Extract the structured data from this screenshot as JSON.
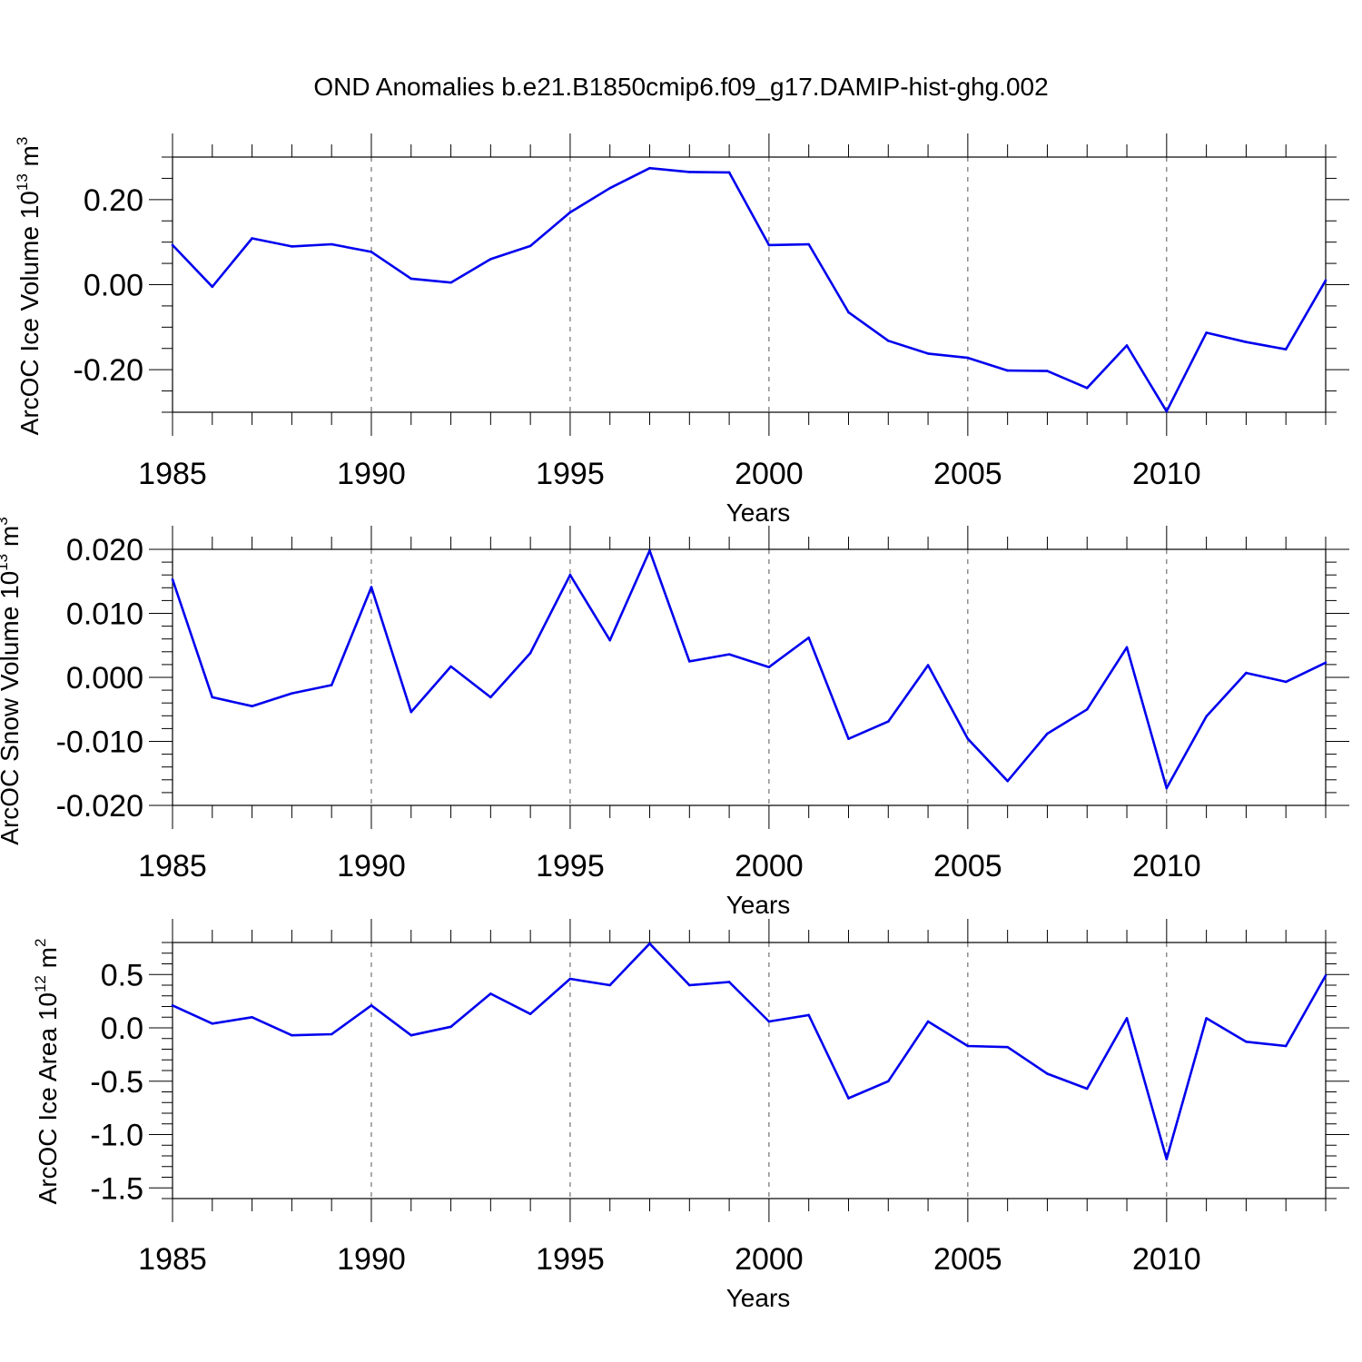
{
  "figure": {
    "title": "OND Anomalies b.e21.B1850cmip6.f09_g17.DAMIP-hist-ghg.002"
  },
  "colors": {
    "line": "#0000ee",
    "axis": "#000000",
    "grid": "#555555"
  },
  "chart_data": [
    {
      "type": "line",
      "name": "ice-volume",
      "xlabel": "Years",
      "ylabel_main": "ArcOC Ice Volume 10",
      "ylabel_exp": "13",
      "ylabel_unit": "m",
      "ylabel_unit_exp": "3",
      "xlim": [
        1985,
        2014
      ],
      "ylim": [
        -0.3,
        0.3
      ],
      "x_ticks": [
        1985,
        1990,
        1995,
        2000,
        2005,
        2010
      ],
      "x_tick_labels": [
        "1985",
        "1990",
        "1995",
        "2000",
        "2005",
        "2010"
      ],
      "y_ticks": [
        -0.2,
        0.0,
        0.2
      ],
      "y_tick_labels": [
        "-0.20",
        "0.00",
        "0.20"
      ],
      "y_minor_step": 0.05,
      "grid": "vertical dashed at major x ticks",
      "x": [
        1985,
        1986,
        1987,
        1988,
        1989,
        1990,
        1991,
        1992,
        1993,
        1994,
        1995,
        1996,
        1997,
        1998,
        1999,
        2000,
        2001,
        2002,
        2003,
        2004,
        2005,
        2006,
        2007,
        2008,
        2009,
        2010,
        2011,
        2012,
        2013,
        2014
      ],
      "values": [
        0.093,
        -0.005,
        0.109,
        0.09,
        0.095,
        0.077,
        0.014,
        0.005,
        0.06,
        0.091,
        0.17,
        0.227,
        0.274,
        0.265,
        0.264,
        0.093,
        0.095,
        -0.065,
        -0.132,
        -0.162,
        -0.172,
        -0.202,
        -0.203,
        -0.243,
        -0.143,
        -0.298,
        -0.113,
        -0.135,
        -0.152,
        0.01
      ]
    },
    {
      "type": "line",
      "name": "snow-volume",
      "xlabel": "Years",
      "ylabel_main": "ArcOC Snow Volume 10",
      "ylabel_exp": "13",
      "ylabel_unit": "m",
      "ylabel_unit_exp": "3",
      "xlim": [
        1985,
        2014
      ],
      "ylim": [
        -0.02,
        0.02
      ],
      "x_ticks": [
        1985,
        1990,
        1995,
        2000,
        2005,
        2010
      ],
      "x_tick_labels": [
        "1985",
        "1990",
        "1995",
        "2000",
        "2005",
        "2010"
      ],
      "y_ticks": [
        -0.02,
        -0.01,
        0.0,
        0.01,
        0.02
      ],
      "y_tick_labels": [
        "-0.020",
        "-0.010",
        "0.000",
        "0.010",
        "0.020"
      ],
      "y_minor_step": 0.002,
      "grid": "vertical dashed at major x ticks",
      "x": [
        1985,
        1986,
        1987,
        1988,
        1989,
        1990,
        1991,
        1992,
        1993,
        1994,
        1995,
        1996,
        1997,
        1998,
        1999,
        2000,
        2001,
        2002,
        2003,
        2004,
        2005,
        2006,
        2007,
        2008,
        2009,
        2010,
        2011,
        2012,
        2013,
        2014
      ],
      "values": [
        0.0153,
        -0.0031,
        -0.0045,
        -0.0025,
        -0.0012,
        0.0141,
        -0.0054,
        0.0017,
        -0.0031,
        0.0038,
        0.016,
        0.0058,
        0.0198,
        0.0025,
        0.0036,
        0.0016,
        0.0062,
        -0.0096,
        -0.0069,
        0.0019,
        -0.0096,
        -0.0162,
        -0.0088,
        -0.005,
        0.0047,
        -0.0173,
        -0.0061,
        0.0007,
        -0.0007,
        0.0023
      ]
    },
    {
      "type": "line",
      "name": "ice-area",
      "xlabel": "Years",
      "ylabel_main": "ArcOC Ice Area 10",
      "ylabel_exp": "12",
      "ylabel_unit": "m",
      "ylabel_unit_exp": "2",
      "xlim": [
        1985,
        2014
      ],
      "ylim": [
        -1.6,
        0.8
      ],
      "x_ticks": [
        1985,
        1990,
        1995,
        2000,
        2005,
        2010
      ],
      "x_tick_labels": [
        "1985",
        "1990",
        "1995",
        "2000",
        "2005",
        "2010"
      ],
      "y_ticks": [
        -1.5,
        -1.0,
        -0.5,
        0.0,
        0.5
      ],
      "y_tick_labels": [
        "-1.5",
        "-1.0",
        "-0.5",
        "0.0",
        "0.5"
      ],
      "y_minor_step": 0.1,
      "grid": "vertical dashed at major x ticks",
      "x": [
        1985,
        1986,
        1987,
        1988,
        1989,
        1990,
        1991,
        1992,
        1993,
        1994,
        1995,
        1996,
        1997,
        1998,
        1999,
        2000,
        2001,
        2002,
        2003,
        2004,
        2005,
        2006,
        2007,
        2008,
        2009,
        2010,
        2011,
        2012,
        2013,
        2014
      ],
      "values": [
        0.21,
        0.04,
        0.1,
        -0.07,
        -0.06,
        0.21,
        -0.07,
        0.01,
        0.32,
        0.13,
        0.46,
        0.4,
        0.79,
        0.4,
        0.43,
        0.06,
        0.12,
        -0.66,
        -0.5,
        0.06,
        -0.17,
        -0.18,
        -0.43,
        -0.57,
        0.09,
        -1.23,
        0.09,
        -0.13,
        -0.17,
        0.49
      ]
    }
  ]
}
